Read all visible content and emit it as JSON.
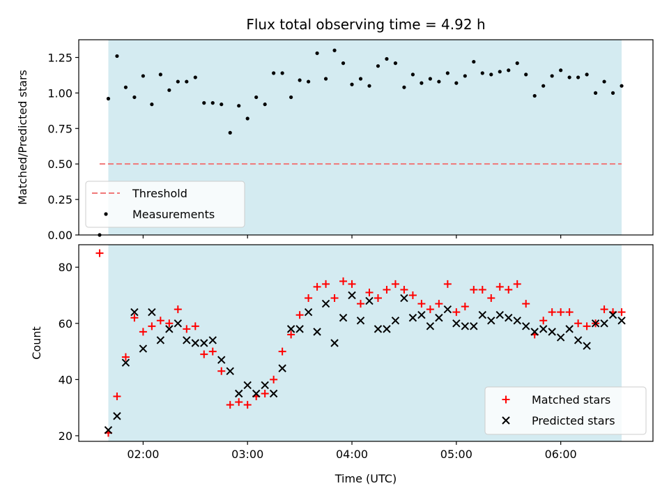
{
  "chart_data": [
    {
      "type": "scatter",
      "title": "Flux total observing time = 4.92 h",
      "ylabel": "Matched/Predicted stars",
      "xlim": [
        "01:23",
        "06:53"
      ],
      "ylim": [
        0,
        1.375
      ],
      "yticks": [
        "0.00",
        "0.25",
        "0.50",
        "0.75",
        "1.00",
        "1.25"
      ],
      "xticks_labels_shown": false,
      "observing_window": [
        "01:40",
        "06:35"
      ],
      "observing_window_color": "#d4ebf1",
      "threshold": {
        "name": "Threshold",
        "value": 0.5,
        "from": "01:35",
        "to": "06:35",
        "color": "#f07878",
        "style": "dashed"
      },
      "legend": {
        "position": "lower-left",
        "entries": [
          "Threshold",
          "Measurements"
        ]
      },
      "series": [
        {
          "name": "Measurements",
          "color": "#000000",
          "marker": "dot",
          "points": [
            [
              "01:35",
              0.0
            ],
            [
              "01:40",
              0.96
            ],
            [
              "01:45",
              1.26
            ],
            [
              "01:50",
              1.04
            ],
            [
              "01:55",
              0.97
            ],
            [
              "02:00",
              1.12
            ],
            [
              "02:05",
              0.92
            ],
            [
              "02:10",
              1.13
            ],
            [
              "02:15",
              1.02
            ],
            [
              "02:20",
              1.08
            ],
            [
              "02:25",
              1.08
            ],
            [
              "02:30",
              1.11
            ],
            [
              "02:35",
              0.93
            ],
            [
              "02:40",
              0.93
            ],
            [
              "02:45",
              0.92
            ],
            [
              "02:50",
              0.72
            ],
            [
              "02:55",
              0.91
            ],
            [
              "03:00",
              0.82
            ],
            [
              "03:05",
              0.97
            ],
            [
              "03:10",
              0.92
            ],
            [
              "03:15",
              1.14
            ],
            [
              "03:20",
              1.14
            ],
            [
              "03:25",
              0.97
            ],
            [
              "03:30",
              1.09
            ],
            [
              "03:35",
              1.08
            ],
            [
              "03:40",
              1.28
            ],
            [
              "03:45",
              1.1
            ],
            [
              "03:50",
              1.3
            ],
            [
              "03:55",
              1.21
            ],
            [
              "04:00",
              1.06
            ],
            [
              "04:05",
              1.1
            ],
            [
              "04:10",
              1.05
            ],
            [
              "04:15",
              1.19
            ],
            [
              "04:20",
              1.24
            ],
            [
              "04:25",
              1.21
            ],
            [
              "04:30",
              1.04
            ],
            [
              "04:35",
              1.13
            ],
            [
              "04:40",
              1.07
            ],
            [
              "04:45",
              1.1
            ],
            [
              "04:50",
              1.08
            ],
            [
              "04:55",
              1.14
            ],
            [
              "05:00",
              1.07
            ],
            [
              "05:05",
              1.12
            ],
            [
              "05:10",
              1.22
            ],
            [
              "05:15",
              1.14
            ],
            [
              "05:20",
              1.13
            ],
            [
              "05:25",
              1.15
            ],
            [
              "05:30",
              1.16
            ],
            [
              "05:35",
              1.21
            ],
            [
              "05:40",
              1.13
            ],
            [
              "05:45",
              0.98
            ],
            [
              "05:50",
              1.05
            ],
            [
              "05:55",
              1.12
            ],
            [
              "06:00",
              1.16
            ],
            [
              "06:05",
              1.11
            ],
            [
              "06:10",
              1.11
            ],
            [
              "06:15",
              1.13
            ],
            [
              "06:20",
              1.0
            ],
            [
              "06:25",
              1.08
            ],
            [
              "06:30",
              1.0
            ],
            [
              "06:35",
              1.05
            ]
          ]
        }
      ]
    },
    {
      "type": "scatter",
      "xlabel": "Time (UTC)",
      "ylabel": "Count",
      "xlim": [
        "01:23",
        "06:53"
      ],
      "ylim": [
        18,
        88
      ],
      "xticks": [
        "02:00",
        "03:00",
        "04:00",
        "05:00",
        "06:00"
      ],
      "yticks": [
        "20",
        "40",
        "60",
        "80"
      ],
      "observing_window": [
        "01:40",
        "06:35"
      ],
      "observing_window_color": "#d4ebf1",
      "legend": {
        "position": "lower-right",
        "entries": [
          "Matched stars",
          "Predicted stars"
        ]
      },
      "series": [
        {
          "name": "Matched stars",
          "color": "#ff0000",
          "marker": "plus",
          "points": [
            [
              "01:35",
              85
            ],
            [
              "01:40",
              21
            ],
            [
              "01:45",
              34
            ],
            [
              "01:50",
              48
            ],
            [
              "01:55",
              62
            ],
            [
              "02:00",
              57
            ],
            [
              "02:05",
              59
            ],
            [
              "02:10",
              61
            ],
            [
              "02:15",
              60
            ],
            [
              "02:20",
              65
            ],
            [
              "02:25",
              58
            ],
            [
              "02:30",
              59
            ],
            [
              "02:35",
              49
            ],
            [
              "02:40",
              50
            ],
            [
              "02:45",
              43
            ],
            [
              "02:50",
              31
            ],
            [
              "02:55",
              32
            ],
            [
              "03:00",
              31
            ],
            [
              "03:05",
              34
            ],
            [
              "03:10",
              35
            ],
            [
              "03:15",
              40
            ],
            [
              "03:20",
              50
            ],
            [
              "03:25",
              56
            ],
            [
              "03:30",
              63
            ],
            [
              "03:35",
              69
            ],
            [
              "03:40",
              73
            ],
            [
              "03:45",
              74
            ],
            [
              "03:50",
              69
            ],
            [
              "03:55",
              75
            ],
            [
              "04:00",
              74
            ],
            [
              "04:05",
              67
            ],
            [
              "04:10",
              71
            ],
            [
              "04:15",
              69
            ],
            [
              "04:20",
              72
            ],
            [
              "04:25",
              74
            ],
            [
              "04:30",
              72
            ],
            [
              "04:35",
              70
            ],
            [
              "04:40",
              67
            ],
            [
              "04:45",
              65
            ],
            [
              "04:50",
              67
            ],
            [
              "04:55",
              74
            ],
            [
              "05:00",
              64
            ],
            [
              "05:05",
              66
            ],
            [
              "05:10",
              72
            ],
            [
              "05:15",
              72
            ],
            [
              "05:20",
              69
            ],
            [
              "05:25",
              73
            ],
            [
              "05:30",
              72
            ],
            [
              "05:35",
              74
            ],
            [
              "05:40",
              67
            ],
            [
              "05:45",
              56
            ],
            [
              "05:50",
              61
            ],
            [
              "05:55",
              64
            ],
            [
              "06:00",
              64
            ],
            [
              "06:05",
              64
            ],
            [
              "06:10",
              60
            ],
            [
              "06:15",
              59
            ],
            [
              "06:20",
              60
            ],
            [
              "06:25",
              65
            ],
            [
              "06:30",
              64
            ],
            [
              "06:35",
              64
            ]
          ]
        },
        {
          "name": "Predicted stars",
          "color": "#000000",
          "marker": "x",
          "points": [
            [
              "01:40",
              22
            ],
            [
              "01:45",
              27
            ],
            [
              "01:50",
              46
            ],
            [
              "01:55",
              64
            ],
            [
              "02:00",
              51
            ],
            [
              "02:05",
              64
            ],
            [
              "02:10",
              54
            ],
            [
              "02:15",
              58
            ],
            [
              "02:20",
              60
            ],
            [
              "02:25",
              54
            ],
            [
              "02:30",
              53
            ],
            [
              "02:35",
              53
            ],
            [
              "02:40",
              54
            ],
            [
              "02:45",
              47
            ],
            [
              "02:50",
              43
            ],
            [
              "02:55",
              35
            ],
            [
              "03:00",
              38
            ],
            [
              "03:05",
              35
            ],
            [
              "03:10",
              38
            ],
            [
              "03:15",
              35
            ],
            [
              "03:20",
              44
            ],
            [
              "03:25",
              58
            ],
            [
              "03:30",
              58
            ],
            [
              "03:35",
              64
            ],
            [
              "03:40",
              57
            ],
            [
              "03:45",
              67
            ],
            [
              "03:50",
              53
            ],
            [
              "03:55",
              62
            ],
            [
              "04:00",
              70
            ],
            [
              "04:05",
              61
            ],
            [
              "04:10",
              68
            ],
            [
              "04:15",
              58
            ],
            [
              "04:20",
              58
            ],
            [
              "04:25",
              61
            ],
            [
              "04:30",
              69
            ],
            [
              "04:35",
              62
            ],
            [
              "04:40",
              63
            ],
            [
              "04:45",
              59
            ],
            [
              "04:50",
              62
            ],
            [
              "04:55",
              65
            ],
            [
              "05:00",
              60
            ],
            [
              "05:05",
              59
            ],
            [
              "05:10",
              59
            ],
            [
              "05:15",
              63
            ],
            [
              "05:20",
              61
            ],
            [
              "05:25",
              63
            ],
            [
              "05:30",
              62
            ],
            [
              "05:35",
              61
            ],
            [
              "05:40",
              59
            ],
            [
              "05:45",
              57
            ],
            [
              "05:50",
              58
            ],
            [
              "05:55",
              57
            ],
            [
              "06:00",
              55
            ],
            [
              "06:05",
              58
            ],
            [
              "06:10",
              54
            ],
            [
              "06:15",
              52
            ],
            [
              "06:20",
              60
            ],
            [
              "06:25",
              60
            ],
            [
              "06:30",
              63
            ],
            [
              "06:35",
              61
            ]
          ]
        }
      ]
    }
  ]
}
